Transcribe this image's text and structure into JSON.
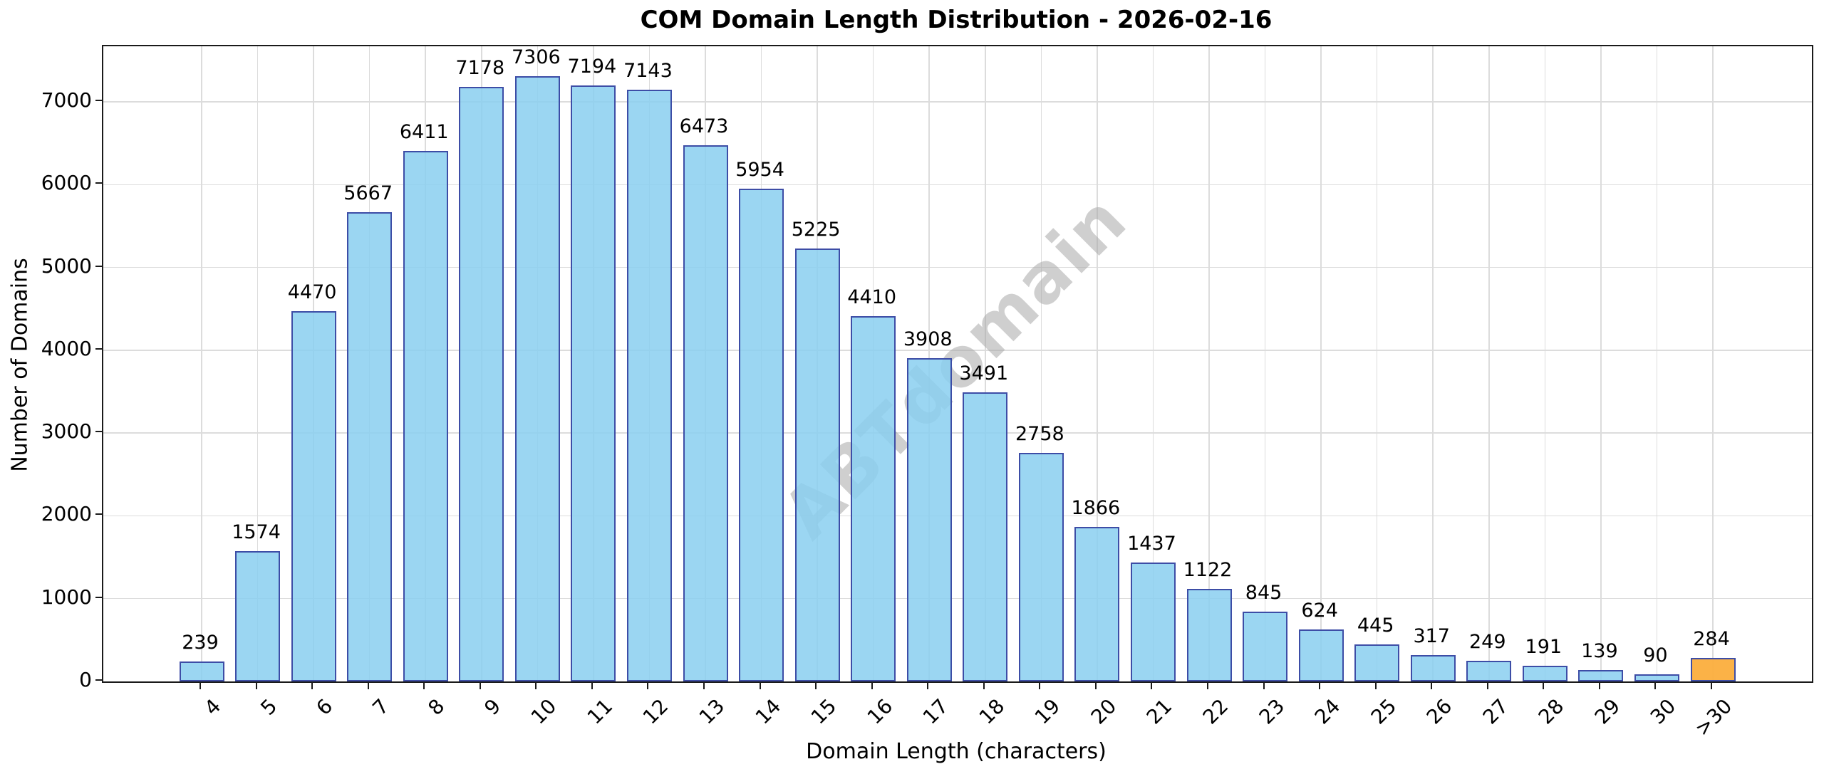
{
  "chart_data": {
    "type": "bar",
    "title": "COM Domain Length Distribution - 2026-02-16",
    "xlabel": "Domain Length (characters)",
    "ylabel": "Number of Domains",
    "categories": [
      "4",
      "5",
      "6",
      "7",
      "8",
      "9",
      "10",
      "11",
      "12",
      "13",
      "14",
      "15",
      "16",
      "17",
      "18",
      "19",
      "20",
      "21",
      "22",
      "23",
      "24",
      "25",
      "26",
      "27",
      "28",
      "29",
      "30",
      ">30"
    ],
    "values": [
      239,
      1574,
      4470,
      5667,
      6411,
      7178,
      7306,
      7194,
      7143,
      6473,
      5954,
      5225,
      4410,
      3908,
      3491,
      2758,
      1866,
      1437,
      1122,
      845,
      624,
      445,
      317,
      249,
      191,
      139,
      90,
      284
    ],
    "bar_color_default": "rgba(137, 207, 240, 0.85)",
    "bar_color_last": "rgba(251, 174, 61, 0.95)",
    "bar_edge_color": "#3d4da6",
    "yticks": [
      0,
      1000,
      2000,
      3000,
      4000,
      5000,
      6000,
      7000
    ],
    "ylim": [
      0,
      7671
    ],
    "grid": true,
    "gridline_color": "#dcdcdc",
    "watermark": "ABTdomain",
    "watermark_color": "#a9a9a9",
    "legend": "none"
  }
}
